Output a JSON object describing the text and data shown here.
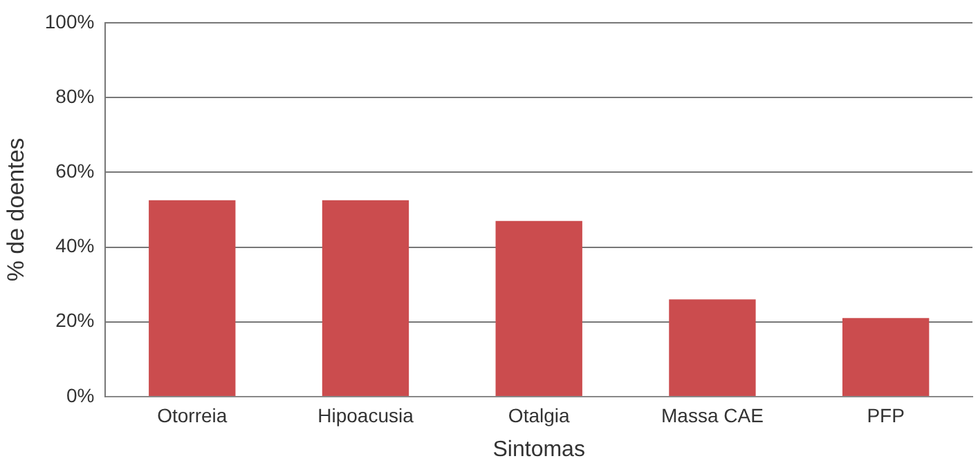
{
  "chart_data": {
    "type": "bar",
    "xlabel": "Sintomas",
    "ylabel": "% de doentes",
    "categories": [
      "Otorreia",
      "Hipoacusia",
      "Otalgia",
      "Massa CAE",
      "PFP"
    ],
    "values": [
      52.5,
      52.5,
      47,
      26,
      21
    ],
    "color": "#cb4c4e",
    "ylim": [
      0,
      100
    ],
    "yticks": [
      {
        "value": 0,
        "label": "0%"
      },
      {
        "value": 20,
        "label": "20%"
      },
      {
        "value": 40,
        "label": "40%"
      },
      {
        "value": 60,
        "label": "60%"
      },
      {
        "value": 80,
        "label": "80%"
      },
      {
        "value": 100,
        "label": "100%"
      }
    ],
    "grid": "y",
    "legend": false
  }
}
